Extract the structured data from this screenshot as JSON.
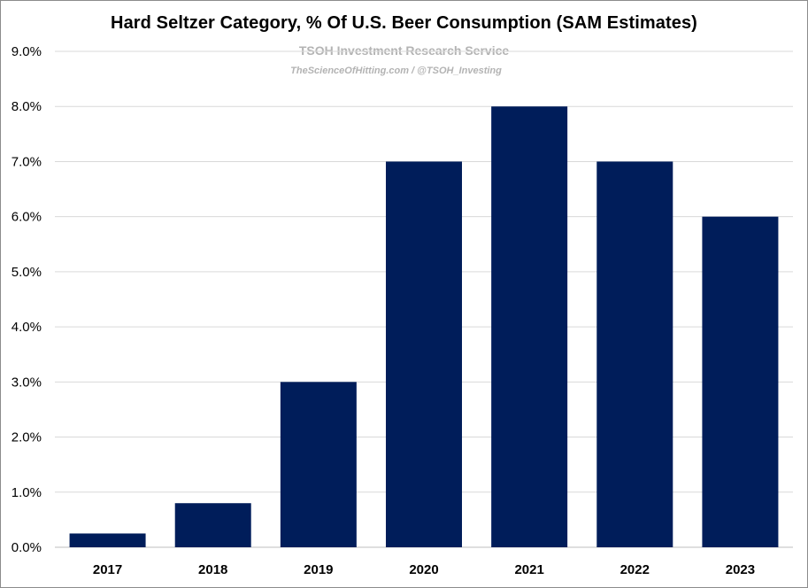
{
  "chart_data": {
    "type": "bar",
    "title": "Hard Seltzer Category, % Of U.S. Beer Consumption (SAM Estimates)",
    "watermark_line1": "TSOH Investment Research Service",
    "watermark_line2": "TheScienceOfHitting.com / @TSOH_Investing",
    "categories": [
      "2017",
      "2018",
      "2019",
      "2020",
      "2021",
      "2022",
      "2023"
    ],
    "values": [
      0.25,
      0.8,
      3.0,
      7.0,
      8.0,
      7.0,
      6.0
    ],
    "value_unit": "%",
    "xlabel": "",
    "ylabel": "",
    "ylim": [
      0,
      9
    ],
    "yticks": [
      "0.0%",
      "1.0%",
      "2.0%",
      "3.0%",
      "4.0%",
      "5.0%",
      "6.0%",
      "7.0%",
      "8.0%",
      "9.0%"
    ],
    "grid": true,
    "legend": "none",
    "bar_color": "#001d5a"
  }
}
